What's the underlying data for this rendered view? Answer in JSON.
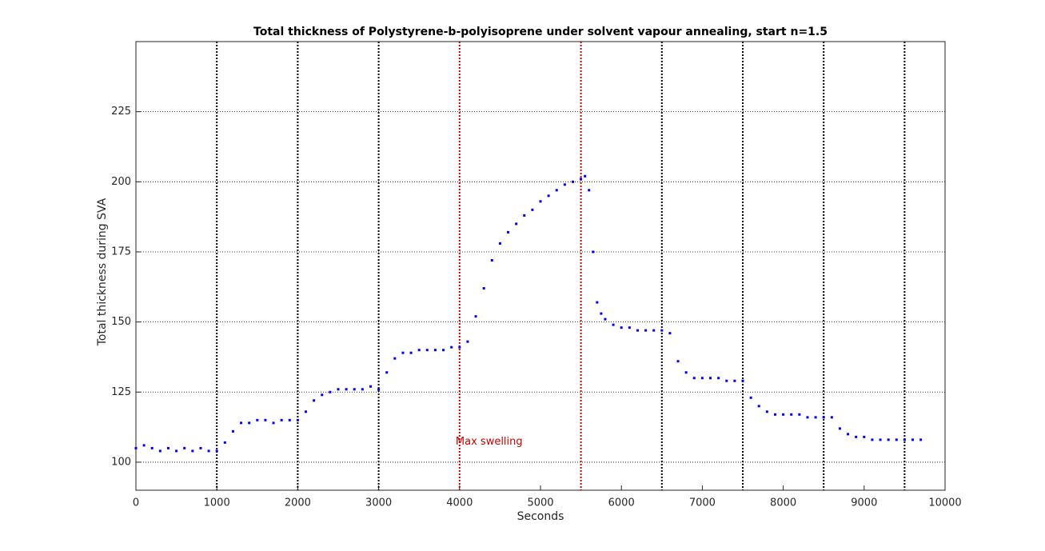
{
  "chart_data": {
    "type": "scatter",
    "title": "Total thickness of Polystyrene-b-polyisoprene under solvent vapour annealing, start n=1.5",
    "xlabel": "Seconds",
    "ylabel": "Total thickness during SVA",
    "xlim": [
      0,
      10000
    ],
    "ylim": [
      90,
      250
    ],
    "xticks": [
      0,
      1000,
      2000,
      3000,
      4000,
      5000,
      6000,
      7000,
      8000,
      9000,
      10000
    ],
    "yticks": [
      100,
      125,
      150,
      175,
      200,
      225
    ],
    "grid": true,
    "vlines": [
      {
        "x": 1000,
        "color": "#000000"
      },
      {
        "x": 2000,
        "color": "#000000"
      },
      {
        "x": 3000,
        "color": "#000000"
      },
      {
        "x": 4000,
        "color": "#cc0000"
      },
      {
        "x": 5500,
        "color": "#cc0000"
      },
      {
        "x": 6500,
        "color": "#000000"
      },
      {
        "x": 7500,
        "color": "#000000"
      },
      {
        "x": 8500,
        "color": "#000000"
      },
      {
        "x": 9500,
        "color": "#000000"
      }
    ],
    "annotations": [
      {
        "text": "Max swelling",
        "x": 4100,
        "y": 105,
        "color": "#cc0000"
      }
    ],
    "x": [
      0,
      100,
      200,
      300,
      400,
      500,
      600,
      700,
      800,
      900,
      1000,
      1100,
      1200,
      1300,
      1400,
      1500,
      1600,
      1700,
      1800,
      1900,
      2000,
      2100,
      2200,
      2300,
      2400,
      2500,
      2600,
      2700,
      2800,
      2900,
      3000,
      3100,
      3200,
      3300,
      3400,
      3500,
      3600,
      3700,
      3800,
      3900,
      4000,
      4100,
      4200,
      4300,
      4400,
      4500,
      4600,
      4700,
      4800,
      4900,
      5000,
      5100,
      5200,
      5300,
      5400,
      5500,
      5550,
      5600,
      5650,
      5700,
      5750,
      5800,
      5900,
      6000,
      6100,
      6200,
      6300,
      6400,
      6500,
      6600,
      6700,
      6800,
      6900,
      7000,
      7100,
      7200,
      7300,
      7400,
      7500,
      7600,
      7700,
      7800,
      7900,
      8000,
      8100,
      8200,
      8300,
      8400,
      8500,
      8600,
      8700,
      8800,
      8900,
      9000,
      9100,
      9200,
      9300,
      9400,
      9500,
      9600,
      9700
    ],
    "series": [
      {
        "color": "#0000ff",
        "values": [
          105,
          106,
          105,
          104,
          105,
          104,
          105,
          104,
          105,
          104,
          104,
          107,
          111,
          114,
          114,
          115,
          115,
          114,
          115,
          115,
          115,
          118,
          122,
          124,
          125,
          126,
          126,
          126,
          126,
          127,
          126,
          132,
          137,
          139,
          139,
          140,
          140,
          140,
          140,
          141,
          141,
          143,
          152,
          162,
          172,
          178,
          182,
          185,
          188,
          190,
          193,
          195,
          197,
          199,
          200,
          201,
          202,
          197,
          175,
          157,
          153,
          151,
          149,
          148,
          148,
          147,
          147,
          147,
          147,
          146,
          136,
          132,
          130,
          130,
          130,
          130,
          129,
          129,
          129,
          123,
          120,
          118,
          117,
          117,
          117,
          117,
          116,
          116,
          116,
          116,
          112,
          110,
          109,
          109,
          108,
          108,
          108,
          108,
          108,
          108,
          108
        ]
      }
    ]
  }
}
